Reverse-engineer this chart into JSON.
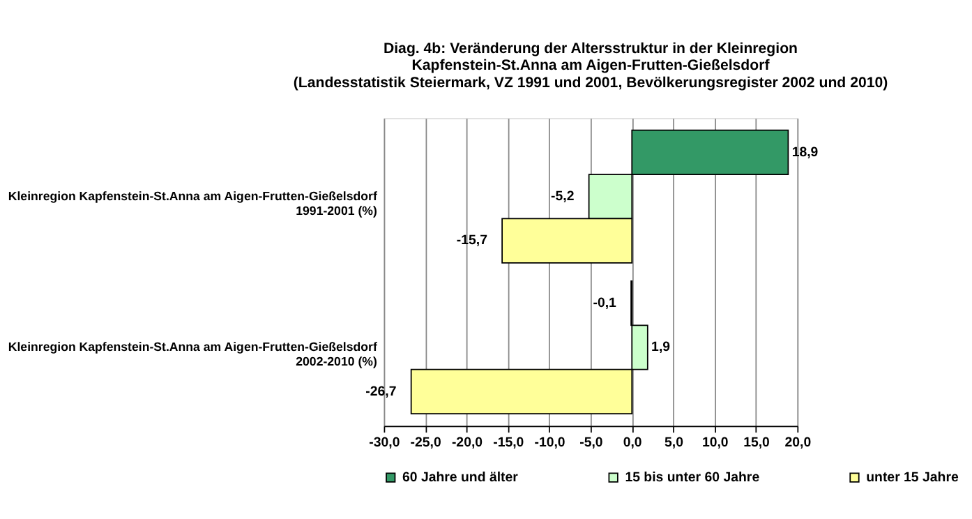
{
  "chart_data": {
    "type": "bar",
    "orientation": "horizontal",
    "title": [
      "Diag. 4b: Veränderung der Altersstruktur in der Kleinregion",
      "Kapfenstein-St.Anna am Aigen-Frutten-Gießelsdorf",
      "(Landesstatistik Steiermark, VZ 1991 und 2001, Bevölkerungsregister 2002 und 2010)"
    ],
    "categories": [
      "Kleinregion Kapfenstein-St.Anna am Aigen-Frutten-Gießelsdorf\n1991-2001 (%)",
      "Kleinregion Kapfenstein-St.Anna am Aigen-Frutten-Gießelsdorf\n2002-2010 (%)"
    ],
    "series": [
      {
        "name": "60 Jahre und älter",
        "color": "#339966",
        "values": [
          18.9,
          -0.1
        ],
        "value_labels": [
          "18,9",
          "-0,1"
        ]
      },
      {
        "name": "15 bis unter 60 Jahre",
        "color": "#ccffcc",
        "values": [
          -5.2,
          1.9
        ],
        "value_labels": [
          "-5,2",
          "1,9"
        ]
      },
      {
        "name": "unter 15 Jahre",
        "color": "#ffff99",
        "values": [
          -15.7,
          -26.7
        ],
        "value_labels": [
          "-15,7",
          "-26,7"
        ]
      }
    ],
    "xlim": [
      -30,
      20
    ],
    "xticks": [
      {
        "value": -30,
        "label": "-30,0"
      },
      {
        "value": -25,
        "label": "-25,0"
      },
      {
        "value": -20,
        "label": "-20,0"
      },
      {
        "value": -15,
        "label": "-15,0"
      },
      {
        "value": -10,
        "label": "-10,0"
      },
      {
        "value": -5,
        "label": "-5,0"
      },
      {
        "value": 0,
        "label": "0,0"
      },
      {
        "value": 5,
        "label": "5,0"
      },
      {
        "value": 10,
        "label": "10,0"
      },
      {
        "value": 15,
        "label": "15,0"
      },
      {
        "value": 20,
        "label": "20,0"
      }
    ],
    "grid": "x",
    "legend": "bottom"
  }
}
